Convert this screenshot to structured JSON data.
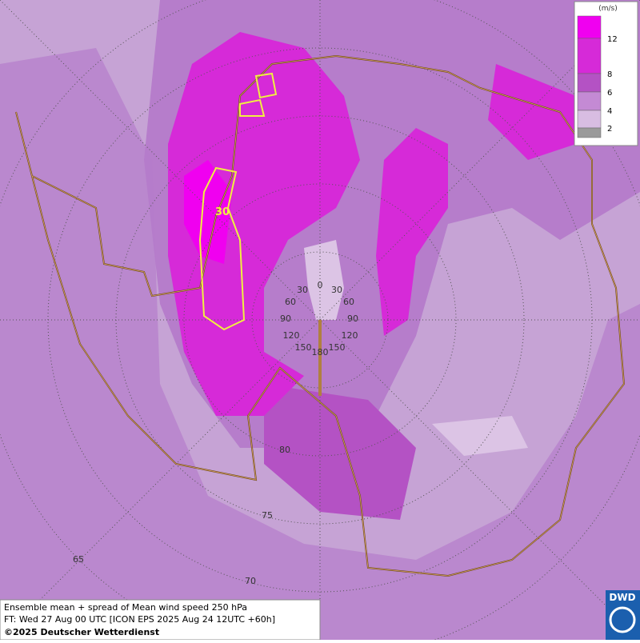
{
  "legend": {
    "unit": "(m/s)",
    "band_colors": [
      "#f000f0",
      "#d62ad8",
      "#b452c4",
      "#c48ad4",
      "#d8bde2",
      "#9a9a9a"
    ],
    "ticks": [
      "12",
      "8",
      "6",
      "4",
      "2"
    ]
  },
  "contour_label": "30",
  "longitude_labels": [
    "30",
    "0",
    "30",
    "60",
    "60",
    "90",
    "90",
    "120",
    "120",
    "150",
    "150",
    "180"
  ],
  "latitude_labels": [
    "80",
    "75",
    "70",
    "65"
  ],
  "footer": {
    "line1": "Ensemble mean + spread of Mean wind speed 250 hPa",
    "line2": "FT: Wed 27 Aug 00 UTC [ICON EPS 2025 Aug 24 12UTC +60h]",
    "line3": "©2025 Deutscher Wetterdienst"
  },
  "logo": "DWD"
}
